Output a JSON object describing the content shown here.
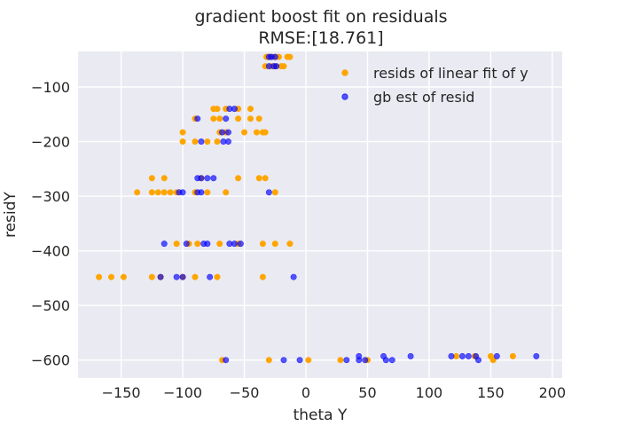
{
  "chart_data": {
    "type": "scatter",
    "title": "gradient boost fit on residuals",
    "subtitle": "RMSE:[18.761]",
    "xlabel": "theta Y",
    "ylabel": "residY",
    "xlim": [
      -185,
      208
    ],
    "ylim": [
      -633,
      -35
    ],
    "xticks": [
      -150,
      -100,
      -50,
      0,
      50,
      100,
      150,
      200
    ],
    "yticks": [
      -100,
      -200,
      -300,
      -400,
      -500,
      -600
    ],
    "xtick_labels": [
      "−150",
      "−100",
      "−50",
      "0",
      "50",
      "100",
      "150",
      "200"
    ],
    "ytick_labels": [
      "−100",
      "−200",
      "−300",
      "−400",
      "−500",
      "−600"
    ],
    "grid": true,
    "legend_position": "top-right",
    "background": "#eaeaf2",
    "series": [
      {
        "name": "resids of linear fit of y",
        "color": "#ffa500",
        "points": [
          [
            -32,
            -45
          ],
          [
            -30,
            -45
          ],
          [
            -28,
            -45
          ],
          [
            -25,
            -45
          ],
          [
            -22,
            -45
          ],
          [
            -15,
            -45
          ],
          [
            -13,
            -45
          ],
          [
            -33,
            -62
          ],
          [
            -28,
            -62
          ],
          [
            -25,
            -62
          ],
          [
            -20,
            -62
          ],
          [
            -18,
            -62
          ],
          [
            -75,
            -140
          ],
          [
            -72,
            -140
          ],
          [
            -65,
            -140
          ],
          [
            -55,
            -140
          ],
          [
            -45,
            -140
          ],
          [
            -90,
            -158
          ],
          [
            -75,
            -158
          ],
          [
            -70,
            -158
          ],
          [
            -55,
            -158
          ],
          [
            -45,
            -158
          ],
          [
            -38,
            -158
          ],
          [
            -100,
            -183
          ],
          [
            -70,
            -183
          ],
          [
            -65,
            -183
          ],
          [
            -50,
            -183
          ],
          [
            -40,
            -183
          ],
          [
            -35,
            -183
          ],
          [
            -33,
            -183
          ],
          [
            -100,
            -200
          ],
          [
            -90,
            -200
          ],
          [
            -80,
            -200
          ],
          [
            -72,
            -200
          ],
          [
            -125,
            -267
          ],
          [
            -115,
            -267
          ],
          [
            -85,
            -267
          ],
          [
            -55,
            -267
          ],
          [
            -38,
            -267
          ],
          [
            -33,
            -267
          ],
          [
            -137,
            -293
          ],
          [
            -125,
            -293
          ],
          [
            -120,
            -293
          ],
          [
            -115,
            -293
          ],
          [
            -110,
            -293
          ],
          [
            -105,
            -293
          ],
          [
            -90,
            -293
          ],
          [
            -80,
            -293
          ],
          [
            -65,
            -293
          ],
          [
            -25,
            -293
          ],
          [
            -105,
            -387
          ],
          [
            -95,
            -387
          ],
          [
            -88,
            -387
          ],
          [
            -70,
            -387
          ],
          [
            -55,
            -387
          ],
          [
            -35,
            -387
          ],
          [
            -25,
            -387
          ],
          [
            -13,
            -387
          ],
          [
            -168,
            -448
          ],
          [
            -158,
            -448
          ],
          [
            -148,
            -448
          ],
          [
            -125,
            -448
          ],
          [
            -118,
            -448
          ],
          [
            -100,
            -448
          ],
          [
            -90,
            -448
          ],
          [
            -72,
            -448
          ],
          [
            -35,
            -448
          ],
          [
            -68,
            -600
          ],
          [
            -30,
            -600
          ],
          [
            2,
            -600
          ],
          [
            28,
            -600
          ],
          [
            50,
            -600
          ],
          [
            122,
            -593
          ],
          [
            137,
            -593
          ],
          [
            150,
            -593
          ],
          [
            152,
            -600
          ],
          [
            168,
            -593
          ]
        ]
      },
      {
        "name": "gb est of resid",
        "color": "#0000ff",
        "points": [
          [
            -30,
            -45
          ],
          [
            -28,
            -45
          ],
          [
            -25,
            -45
          ],
          [
            -30,
            -62
          ],
          [
            -26,
            -62
          ],
          [
            -24,
            -62
          ],
          [
            -62,
            -140
          ],
          [
            -58,
            -140
          ],
          [
            -88,
            -158
          ],
          [
            -65,
            -158
          ],
          [
            -68,
            -183
          ],
          [
            -63,
            -183
          ],
          [
            -85,
            -200
          ],
          [
            -67,
            -200
          ],
          [
            -63,
            -200
          ],
          [
            -88,
            -267
          ],
          [
            -85,
            -267
          ],
          [
            -80,
            -267
          ],
          [
            -75,
            -267
          ],
          [
            -103,
            -293
          ],
          [
            -100,
            -293
          ],
          [
            -88,
            -293
          ],
          [
            -85,
            -293
          ],
          [
            -30,
            -293
          ],
          [
            -115,
            -387
          ],
          [
            -97,
            -387
          ],
          [
            -83,
            -387
          ],
          [
            -80,
            -387
          ],
          [
            -62,
            -387
          ],
          [
            -58,
            -387
          ],
          [
            -53,
            -387
          ],
          [
            -118,
            -448
          ],
          [
            -105,
            -448
          ],
          [
            -100,
            -448
          ],
          [
            -78,
            -448
          ],
          [
            -10,
            -448
          ],
          [
            -65,
            -600
          ],
          [
            -18,
            -600
          ],
          [
            -5,
            -600
          ],
          [
            33,
            -600
          ],
          [
            43,
            -600
          ],
          [
            48,
            -600
          ],
          [
            43,
            -593
          ],
          [
            63,
            -593
          ],
          [
            65,
            -600
          ],
          [
            70,
            -600
          ],
          [
            85,
            -593
          ],
          [
            118,
            -593
          ],
          [
            127,
            -593
          ],
          [
            132,
            -593
          ],
          [
            138,
            -593
          ],
          [
            140,
            -600
          ],
          [
            155,
            -593
          ],
          [
            187,
            -593
          ]
        ]
      }
    ]
  }
}
